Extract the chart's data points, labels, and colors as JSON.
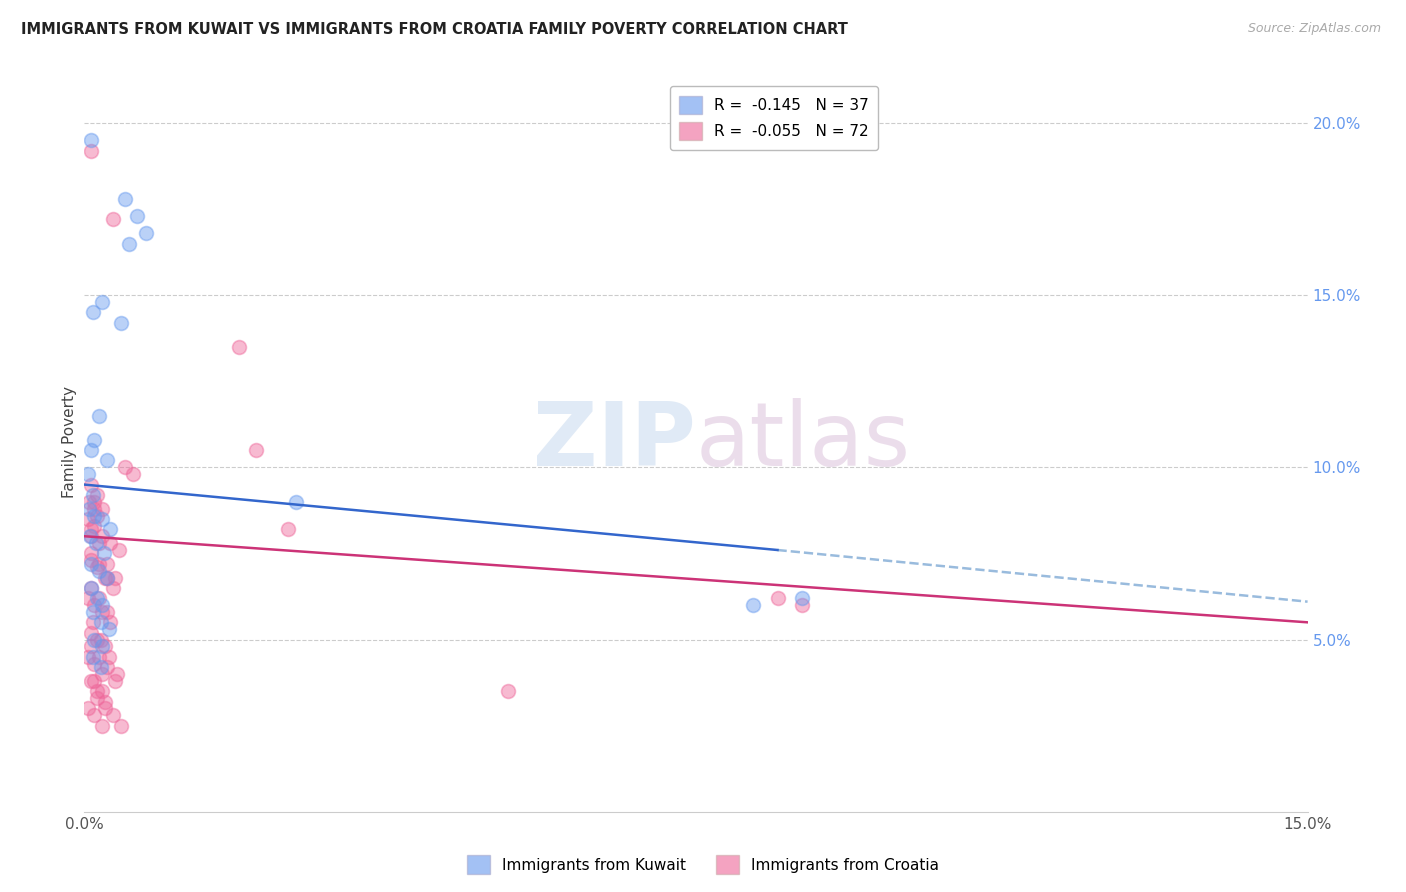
{
  "title": "IMMIGRANTS FROM KUWAIT VS IMMIGRANTS FROM CROATIA FAMILY POVERTY CORRELATION CHART",
  "source": "Source: ZipAtlas.com",
  "ylabel": "Family Poverty",
  "right_ytick_vals": [
    5.0,
    10.0,
    15.0,
    20.0
  ],
  "kuwait_scatter": [
    [
      0.08,
      19.5
    ],
    [
      0.5,
      17.8
    ],
    [
      0.65,
      17.3
    ],
    [
      0.75,
      16.8
    ],
    [
      0.55,
      16.5
    ],
    [
      0.22,
      14.8
    ],
    [
      0.1,
      14.5
    ],
    [
      0.45,
      14.2
    ],
    [
      0.18,
      11.5
    ],
    [
      0.12,
      10.8
    ],
    [
      0.08,
      10.5
    ],
    [
      0.28,
      10.2
    ],
    [
      0.05,
      9.8
    ],
    [
      0.1,
      9.2
    ],
    [
      0.06,
      8.8
    ],
    [
      0.12,
      8.6
    ],
    [
      0.22,
      8.5
    ],
    [
      0.32,
      8.2
    ],
    [
      0.07,
      8.0
    ],
    [
      0.14,
      7.8
    ],
    [
      0.24,
      7.5
    ],
    [
      0.08,
      7.2
    ],
    [
      0.18,
      7.0
    ],
    [
      0.28,
      6.8
    ],
    [
      0.08,
      6.5
    ],
    [
      0.15,
      6.2
    ],
    [
      0.22,
      6.0
    ],
    [
      0.1,
      5.8
    ],
    [
      0.2,
      5.5
    ],
    [
      0.3,
      5.3
    ],
    [
      0.12,
      5.0
    ],
    [
      0.22,
      4.8
    ],
    [
      0.1,
      4.5
    ],
    [
      0.2,
      4.2
    ],
    [
      2.6,
      9.0
    ],
    [
      8.8,
      6.2
    ],
    [
      8.2,
      6.0
    ]
  ],
  "croatia_scatter": [
    [
      0.08,
      19.2
    ],
    [
      0.35,
      17.2
    ],
    [
      1.9,
      13.5
    ],
    [
      2.1,
      10.5
    ],
    [
      0.5,
      10.0
    ],
    [
      0.6,
      9.8
    ],
    [
      0.08,
      9.5
    ],
    [
      0.15,
      9.2
    ],
    [
      0.12,
      9.0
    ],
    [
      0.22,
      8.8
    ],
    [
      0.05,
      8.5
    ],
    [
      0.12,
      8.3
    ],
    [
      0.22,
      8.0
    ],
    [
      0.32,
      7.8
    ],
    [
      0.42,
      7.6
    ],
    [
      0.08,
      7.3
    ],
    [
      0.15,
      7.1
    ],
    [
      0.25,
      6.8
    ],
    [
      0.35,
      6.5
    ],
    [
      0.05,
      6.2
    ],
    [
      0.12,
      6.0
    ],
    [
      0.22,
      5.8
    ],
    [
      0.32,
      5.5
    ],
    [
      0.08,
      5.2
    ],
    [
      0.15,
      5.0
    ],
    [
      0.25,
      4.8
    ],
    [
      0.05,
      4.5
    ],
    [
      0.12,
      4.3
    ],
    [
      0.22,
      4.0
    ],
    [
      0.08,
      3.8
    ],
    [
      0.15,
      3.5
    ],
    [
      0.25,
      3.2
    ],
    [
      0.05,
      3.0
    ],
    [
      0.12,
      2.8
    ],
    [
      0.22,
      2.5
    ],
    [
      0.08,
      8.2
    ],
    [
      0.18,
      7.8
    ],
    [
      0.06,
      9.0
    ],
    [
      0.16,
      8.6
    ],
    [
      0.28,
      7.2
    ],
    [
      0.38,
      6.8
    ],
    [
      0.1,
      5.5
    ],
    [
      0.2,
      5.0
    ],
    [
      0.3,
      4.5
    ],
    [
      0.4,
      4.0
    ],
    [
      0.12,
      3.8
    ],
    [
      0.22,
      3.5
    ],
    [
      0.08,
      6.5
    ],
    [
      0.18,
      6.2
    ],
    [
      0.28,
      5.8
    ],
    [
      0.08,
      4.8
    ],
    [
      0.18,
      4.5
    ],
    [
      0.28,
      4.2
    ],
    [
      0.38,
      3.8
    ],
    [
      0.15,
      3.3
    ],
    [
      0.25,
      3.0
    ],
    [
      0.35,
      2.8
    ],
    [
      0.45,
      2.5
    ],
    [
      0.08,
      7.5
    ],
    [
      0.18,
      7.2
    ],
    [
      0.28,
      6.8
    ],
    [
      8.5,
      6.2
    ],
    [
      8.8,
      6.0
    ],
    [
      5.2,
      3.5
    ],
    [
      2.5,
      8.2
    ],
    [
      0.12,
      8.8
    ],
    [
      0.08,
      8.0
    ]
  ],
  "xlim": [
    0,
    15
  ],
  "ylim": [
    0,
    21.5
  ],
  "kuwait_line_solid": {
    "x0": 0.0,
    "y0": 9.5,
    "x1": 8.5,
    "y1": 7.6
  },
  "kuwait_line_dash": {
    "x0": 8.5,
    "y0": 7.6,
    "x1": 15.0,
    "y1": 6.1
  },
  "croatia_line_solid": {
    "x0": 0.0,
    "y0": 8.0,
    "x1": 15.0,
    "y1": 5.5
  },
  "watermark_zip": "ZIP",
  "watermark_atlas": "atlas",
  "bg_color": "#ffffff",
  "kuwait_color": "#6699ee",
  "croatia_color": "#ee6699",
  "kuwait_line_color": "#3366cc",
  "croatia_line_color": "#cc3377",
  "kuwait_dash_color": "#99bbdd",
  "scatter_alpha": 0.45,
  "scatter_size": 100,
  "grid_color": "#cccccc"
}
